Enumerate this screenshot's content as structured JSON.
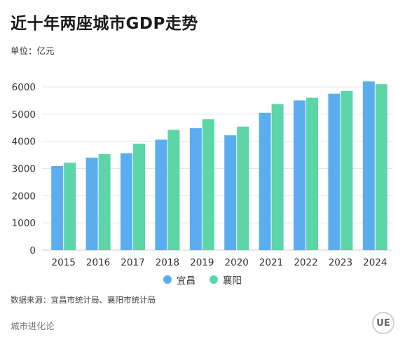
{
  "header": {
    "title": "近十年两座城市GDP走势",
    "unit": "单位：亿元"
  },
  "colors": {
    "yichang": "#5aaef0",
    "xiangyang": "#5cd6a6",
    "grid": "#e6e6e6",
    "axis": "#cccccc"
  },
  "chart_data": {
    "type": "bar",
    "title": "近十年两座城市GDP走势",
    "xlabel": "",
    "ylabel": "",
    "ylim": [
      0,
      6000
    ],
    "yticks": [
      0,
      1000,
      2000,
      3000,
      4000,
      5000,
      6000
    ],
    "grid": true,
    "legend_position": "bottom-center",
    "categories": [
      "2015",
      "2016",
      "2017",
      "2018",
      "2019",
      "2020",
      "2021",
      "2022",
      "2023",
      "2024"
    ],
    "series": [
      {
        "name": "宜昌",
        "values": [
          3090,
          3400,
          3560,
          4060,
          4480,
          4220,
          5050,
          5500,
          5750,
          6200
        ]
      },
      {
        "name": "襄阳",
        "values": [
          3210,
          3530,
          3910,
          4420,
          4810,
          4540,
          5370,
          5600,
          5850,
          6100
        ]
      }
    ]
  },
  "footer": {
    "source": "数据来源：宜昌市统计局、襄阳市统计局",
    "brand": "城市进化论",
    "logo_text": "UE"
  }
}
